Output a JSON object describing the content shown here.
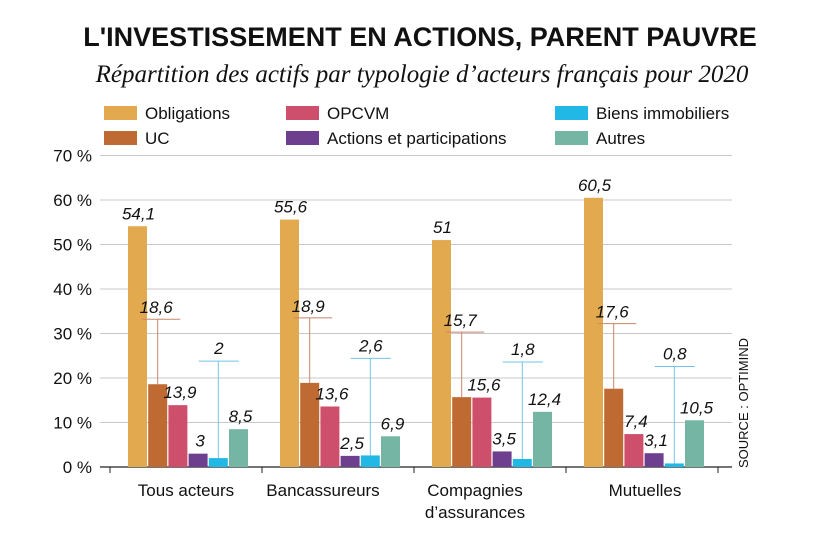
{
  "chart_data": {
    "type": "bar",
    "title": "L'INVESTISSEMENT EN ACTIONS, PARENT PAUVRE",
    "subtitle": "Répartition des actifs par typologie d’acteurs français pour 2020",
    "source": "SOURCE : OPTIMIND",
    "ylim": [
      0,
      70
    ],
    "yticks": [
      "0 %",
      "10 %",
      "20 %",
      "30 %",
      "40 %",
      "50 %",
      "60 %",
      "70 %"
    ],
    "grid": true,
    "legend_position": "top",
    "categories": [
      [
        "Tous acteurs"
      ],
      [
        "Bancassureurs"
      ],
      [
        "Compagnies",
        "d’assurances"
      ],
      [
        "Mutuelles"
      ]
    ],
    "series": [
      {
        "name": "Obligations",
        "color": "#E3A94F",
        "values": [
          54.1,
          55.6,
          51,
          60.5
        ],
        "labels": [
          "54,1",
          "55,6",
          "51",
          "60,5"
        ]
      },
      {
        "name": "UC",
        "color": "#BF6A33",
        "values": [
          18.6,
          18.9,
          15.7,
          17.6
        ],
        "labels": [
          "18,6",
          "18,9",
          "15,7",
          "17,6"
        ]
      },
      {
        "name": "OPCVM",
        "color": "#CE4F6C",
        "values": [
          13.9,
          13.6,
          15.6,
          7.4
        ],
        "labels": [
          "13,9",
          "13,6",
          "15,6",
          "7,4"
        ]
      },
      {
        "name": "Actions et participations",
        "color": "#6D3F8E",
        "values": [
          3,
          2.5,
          3.5,
          3.1
        ],
        "labels": [
          "3",
          "2,5",
          "3,5",
          "3,1"
        ]
      },
      {
        "name": "Biens immobiliers",
        "color": "#22B8E6",
        "values": [
          2,
          2.6,
          1.8,
          0.8
        ],
        "labels": [
          "2",
          "2,6",
          "1,8",
          "0,8"
        ]
      },
      {
        "name": "Autres",
        "color": "#74B5A4",
        "values": [
          8.5,
          6.9,
          12.4,
          10.5
        ],
        "labels": [
          "8,5",
          "6,9",
          "12,4",
          "10,5"
        ]
      }
    ]
  }
}
